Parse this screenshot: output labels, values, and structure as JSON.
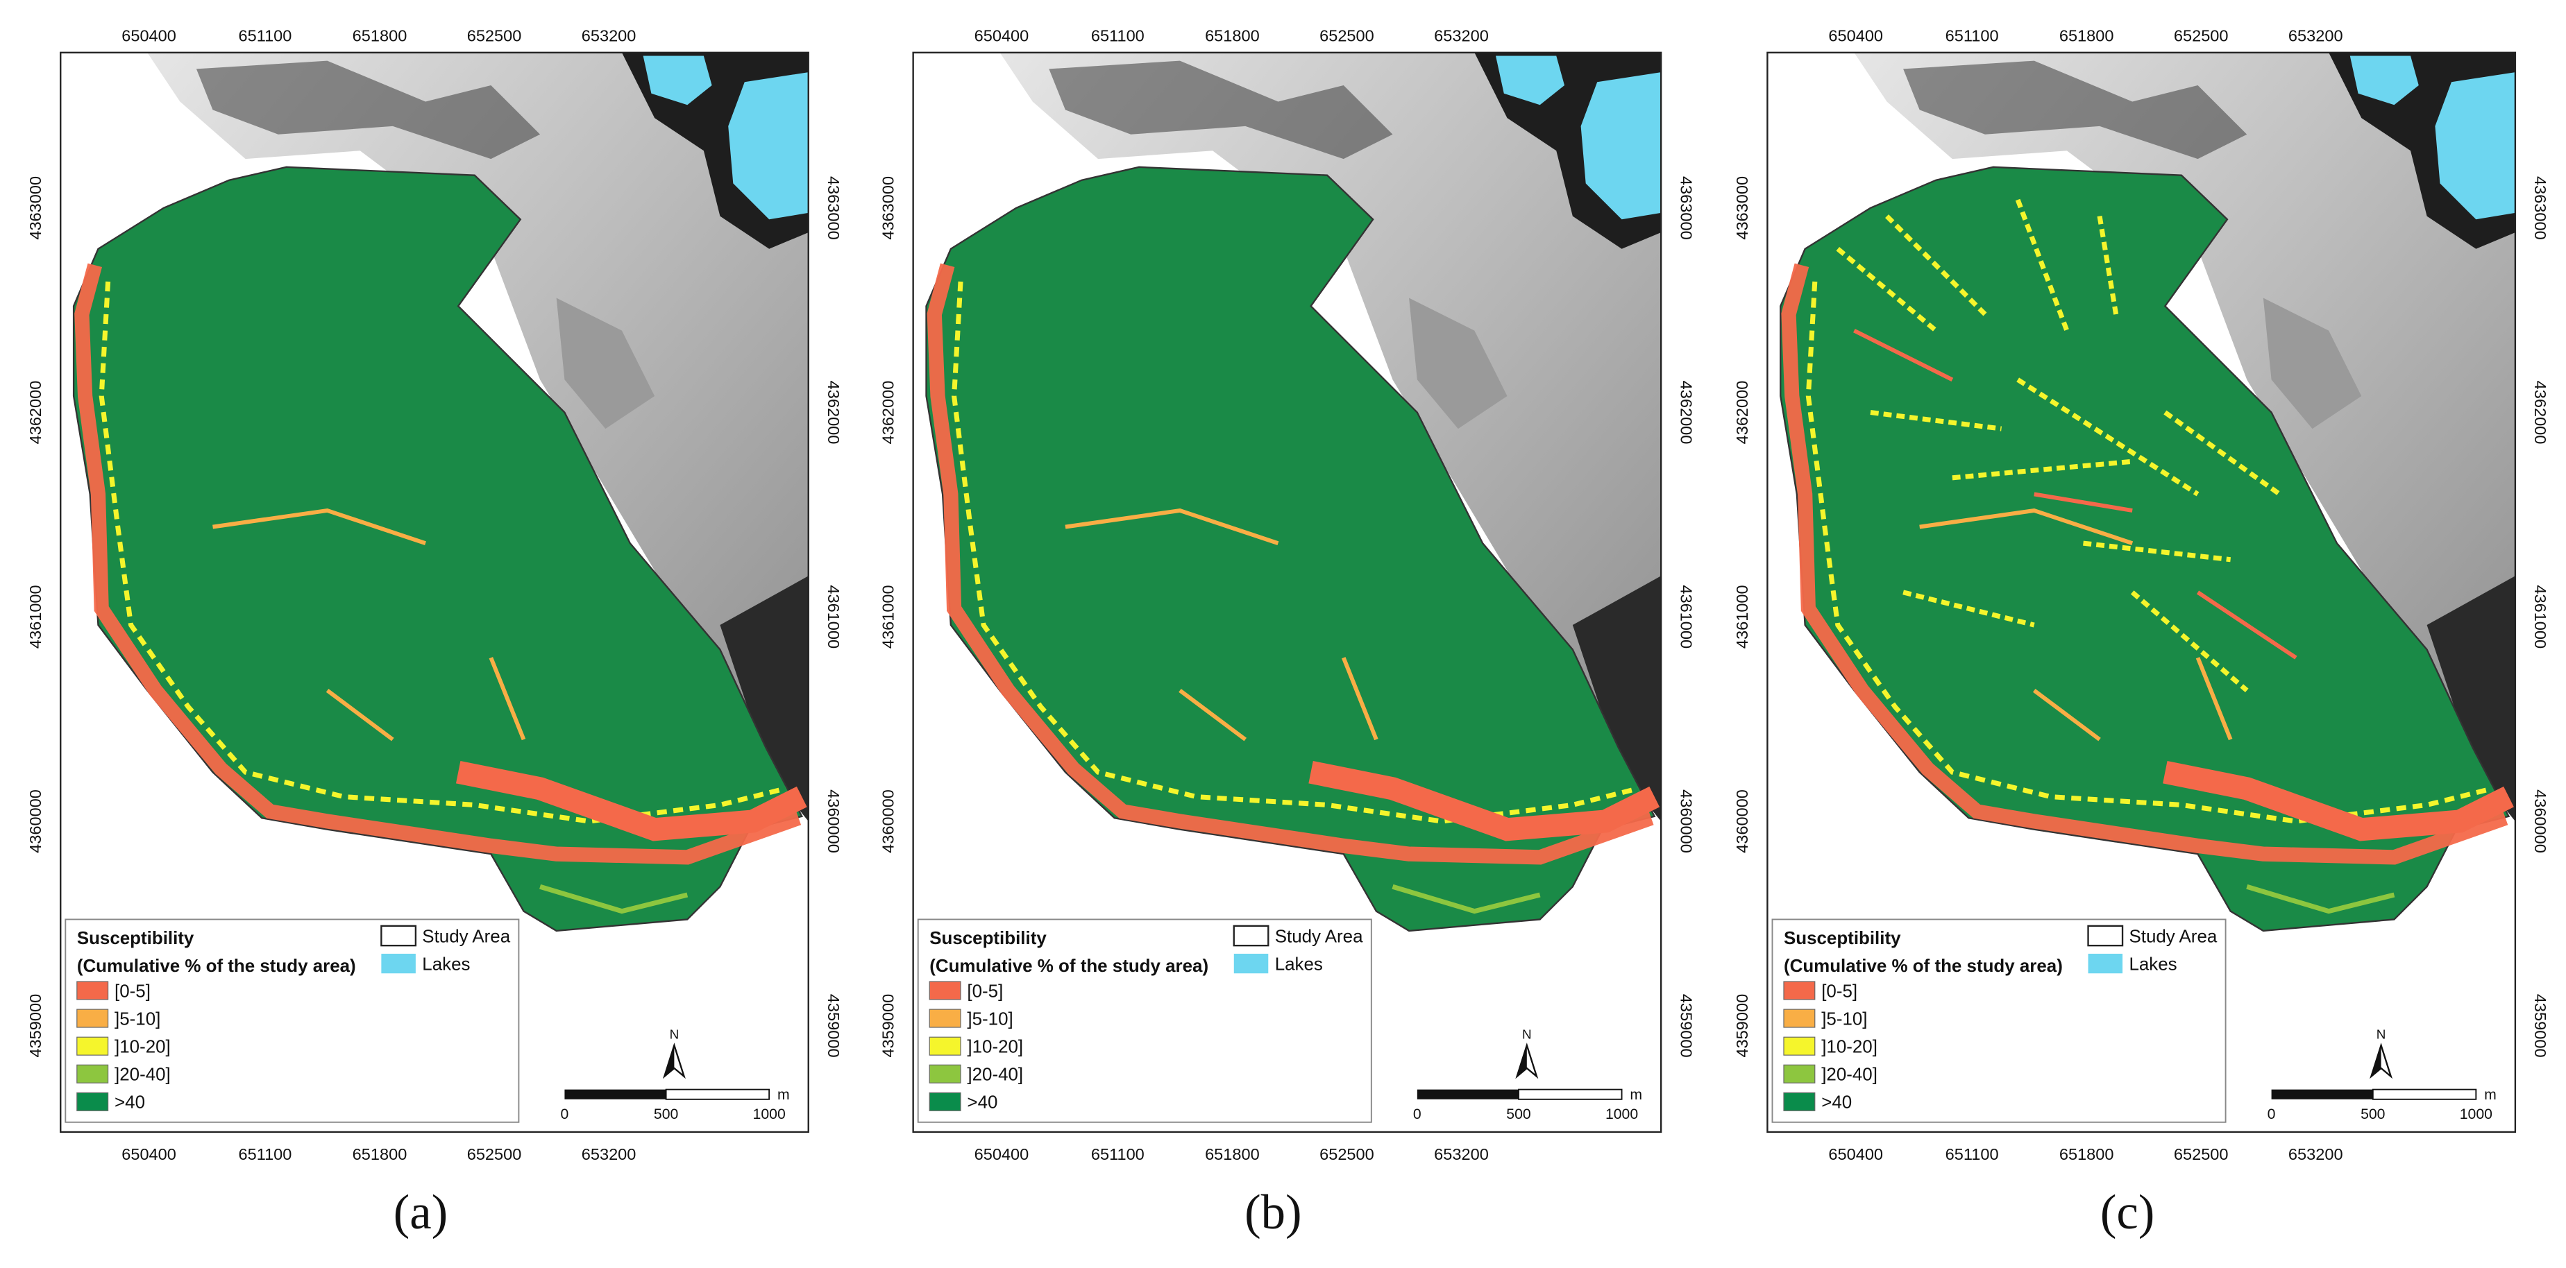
{
  "panels": [
    {
      "label": "(a)"
    },
    {
      "label": "(b)"
    },
    {
      "label": "(c)"
    }
  ],
  "x_ticks": [
    "650400",
    "651100",
    "651800",
    "652500",
    "653200"
  ],
  "y_ticks": [
    "4363000",
    "4362000",
    "4361000",
    "4360000",
    "4359000"
  ],
  "legend": {
    "title": "Susceptibility",
    "subtitle": "(Cumulative % of the study area)",
    "classes": [
      {
        "label": "[0-5]",
        "color": "#f4694a"
      },
      {
        "label": "]5-10]",
        "color": "#f9ae45"
      },
      {
        "label": "]10-20]",
        "color": "#f5f52c"
      },
      {
        "label": "]20-40]",
        "color": "#8dc63f"
      },
      {
        "label": ">40",
        "color": "#0a8c4b"
      }
    ],
    "study_area": "Study Area",
    "lakes": "Lakes",
    "lakes_color": "#6dd6f0"
  },
  "north": "N",
  "scale_bar": {
    "labels": [
      "0",
      "500",
      "1000"
    ],
    "unit": "m"
  }
}
